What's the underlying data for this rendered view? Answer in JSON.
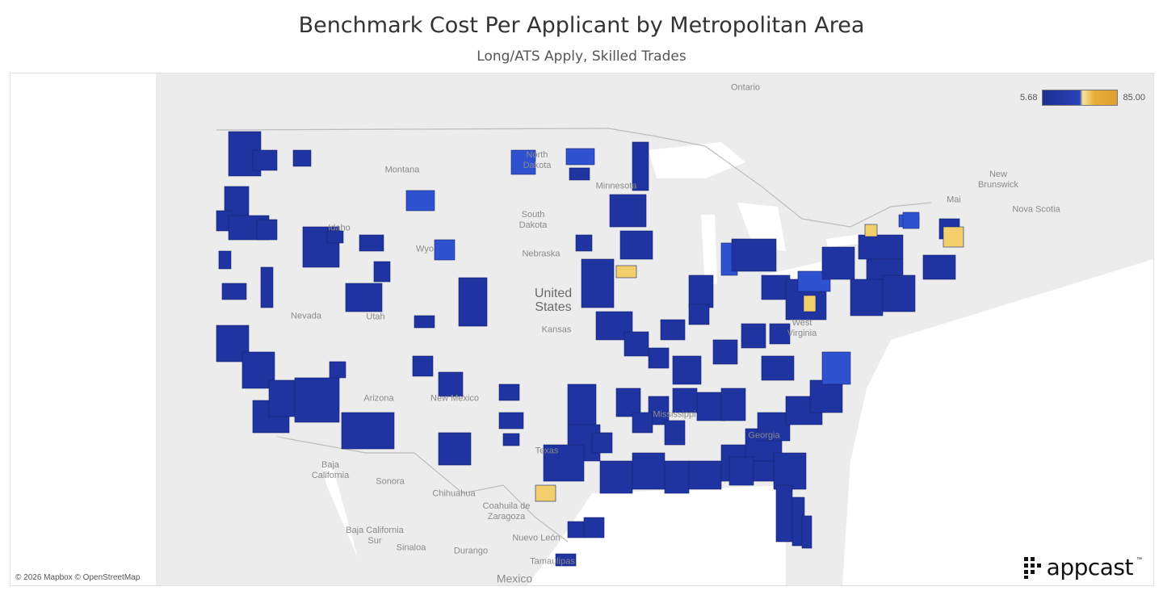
{
  "title": "Benchmark Cost Per Applicant by Metropolitan Area",
  "subtitle": "Long/ATS Apply, Skilled Trades",
  "legend": {
    "min_label": "5.68",
    "max_label": "85.00",
    "low_color": "#1e2d91",
    "mid_color": "#f7e49c",
    "high_color": "#e0a030"
  },
  "attribution": "© 2026 Mapbox © OpenStreetMap",
  "logo_text": "appcast",
  "logo_tm": "™",
  "colors": {
    "land": "#ececec",
    "water": "#ffffff",
    "metro_low": "#1f34a0",
    "metro_mid": "#2f52d0",
    "metro_high": "#f2cf6a",
    "border": "#ffffff"
  },
  "labels": {
    "ontario": "Ontario",
    "north_dakota": "North\nDakota",
    "montana": "Montana",
    "minnesota": "Minnesota",
    "south_dakota": "South\nDakota",
    "idaho": "Idaho",
    "wyoming": "Wyo",
    "nebraska": "Nebraska",
    "nevada": "Nevada",
    "utah": "Utah",
    "kansas": "Kansas",
    "arizona": "Arizona",
    "new_mexico": "New Mexico",
    "texas": "Texas",
    "mississippi": "Mississippi",
    "west_virginia": "West\nVirginia",
    "georgia": "Georgia",
    "new_brunswick": "New\nBrunswick",
    "nova_scotia": "Nova Scotia",
    "maine": "Mai",
    "baja_california": "Baja\nCalifornia",
    "sonora": "Sonora",
    "chihuahua": "Chihuahua",
    "coahuila": "Coahuila de\nZaragoza",
    "baja_california_sur": "Baja California\nSur",
    "sinaloa": "Sinaloa",
    "durango": "Durango",
    "nuevo_leon": "Nuevo León",
    "tamaulipas": "Tamaulipas",
    "united_states": "United\nStates",
    "mexico": "Mexico"
  }
}
